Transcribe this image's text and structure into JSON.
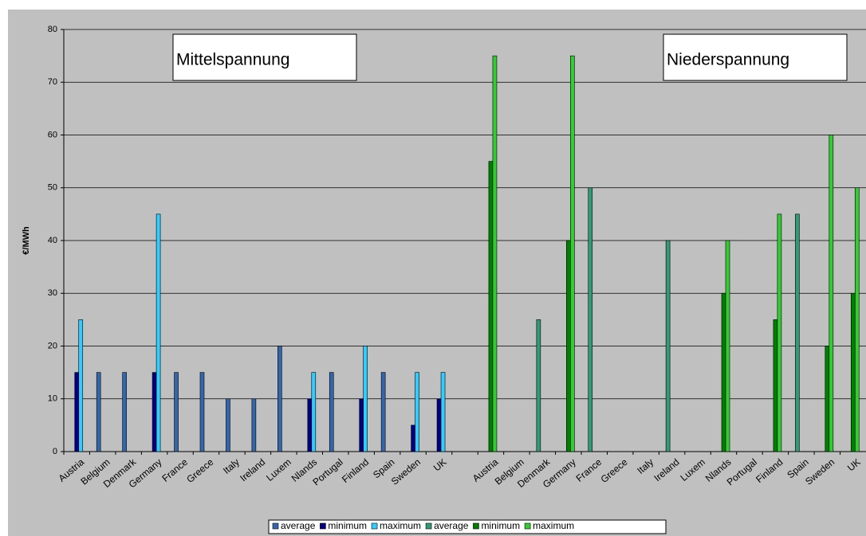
{
  "chart_data": {
    "type": "bar",
    "y_label": "€/MWh",
    "annotations": [
      "Mittelspannung",
      "Niederspannung"
    ],
    "categories": [
      "Austria",
      "Belgium",
      "Denmark",
      "Germany",
      "France",
      "Greece",
      "Italy",
      "Ireland",
      "Luxem",
      "Nlands",
      "Portugal",
      "Finland",
      "Spain",
      "Sweden",
      "UK",
      null,
      "Austria",
      "Belgium",
      "Denmark",
      "Germany",
      "France",
      "Greece",
      "Italy",
      "Ireland",
      "Luxem",
      "Nlands",
      "Portugal",
      "Finland",
      "Spain",
      "Sweden",
      "UK"
    ],
    "series": [
      {
        "name": "average",
        "color": "#3366aa",
        "values": [
          null,
          15,
          15,
          null,
          15,
          15,
          10,
          10,
          20,
          null,
          15,
          null,
          15,
          null,
          null,
          null,
          null,
          null,
          null,
          null,
          null,
          null,
          null,
          null,
          null,
          null,
          null,
          null,
          null,
          null,
          null
        ]
      },
      {
        "name": "minimum",
        "color": "#000080",
        "values": [
          15,
          null,
          null,
          15,
          null,
          null,
          null,
          null,
          null,
          10,
          null,
          10,
          null,
          5,
          10,
          null,
          null,
          null,
          null,
          null,
          null,
          null,
          null,
          null,
          null,
          null,
          null,
          null,
          null,
          null,
          null
        ]
      },
      {
        "name": "maximum",
        "color": "#33ccff",
        "values": [
          25,
          null,
          null,
          45,
          null,
          null,
          null,
          null,
          null,
          15,
          null,
          20,
          null,
          15,
          15,
          null,
          null,
          null,
          null,
          null,
          null,
          null,
          null,
          null,
          null,
          null,
          null,
          null,
          null,
          null,
          null
        ]
      },
      {
        "name": "average",
        "color": "#339977",
        "values": [
          null,
          null,
          null,
          null,
          null,
          null,
          null,
          null,
          null,
          null,
          null,
          null,
          null,
          null,
          null,
          null,
          null,
          null,
          25,
          null,
          50,
          null,
          null,
          40,
          null,
          null,
          null,
          null,
          45,
          null,
          null
        ]
      },
      {
        "name": "minimum",
        "color": "#008000",
        "values": [
          null,
          null,
          null,
          null,
          null,
          null,
          null,
          null,
          null,
          null,
          null,
          null,
          null,
          null,
          null,
          null,
          55,
          null,
          null,
          40,
          null,
          null,
          null,
          null,
          null,
          30,
          null,
          25,
          null,
          20,
          30
        ]
      },
      {
        "name": "maximum",
        "color": "#33cc33",
        "values": [
          null,
          null,
          null,
          null,
          null,
          null,
          null,
          null,
          null,
          null,
          null,
          null,
          null,
          null,
          null,
          null,
          75,
          null,
          null,
          75,
          null,
          null,
          null,
          null,
          null,
          40,
          null,
          45,
          null,
          60,
          50
        ]
      }
    ],
    "ylim": [
      0,
      80
    ],
    "yticks": [
      0,
      10,
      20,
      30,
      40,
      50,
      60,
      70,
      80
    ],
    "grid": true
  }
}
